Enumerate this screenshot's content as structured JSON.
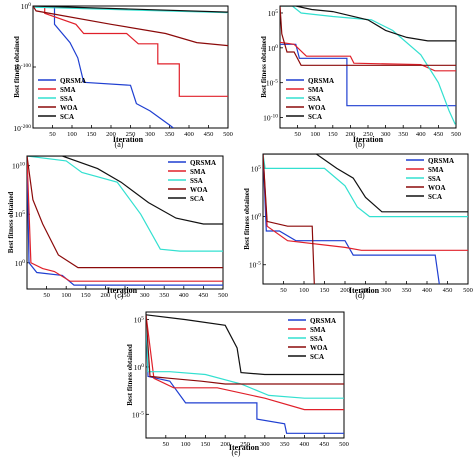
{
  "figure": {
    "legend_entries": [
      "QRSMA",
      "SMA",
      "SSA",
      "WOA",
      "SCA"
    ],
    "series_colors": {
      "QRSMA": "#1f3fd1",
      "SMA": "#e0202a",
      "SSA": "#33e0d0",
      "WOA": "#8b0a0a",
      "SCA": "#111111"
    }
  },
  "chart_data": [
    {
      "type": "line",
      "panel_label": "(a)",
      "xlabel": "Iteration",
      "ylabel": "Best fitness obtained",
      "xlim": [
        0,
        500
      ],
      "x_ticks": [
        "50",
        "100",
        "150",
        "200",
        "250",
        "300",
        "350",
        "400",
        "450",
        "500"
      ],
      "y_scale": "log",
      "y_tick_labels": [
        "10^0",
        "10^-100",
        "10^-200"
      ],
      "y_tick_exps": [
        0,
        -100,
        -200
      ],
      "ylim_exp": [
        -200,
        0
      ],
      "legend_placement": "bottom-left",
      "series": [
        {
          "name": "QRSMA",
          "points": [
            [
              0,
              0
            ],
            [
              55,
              0
            ],
            [
              55,
              -30
            ],
            [
              95,
              -60
            ],
            [
              115,
              -85
            ],
            [
              130,
              -125
            ],
            [
              250,
              -130
            ],
            [
              265,
              -160
            ],
            [
              300,
              -172
            ],
            [
              350,
              -195
            ],
            [
              360,
              -200
            ]
          ]
        },
        {
          "name": "SMA",
          "points": [
            [
              0,
              0
            ],
            [
              30,
              0
            ],
            [
              30,
              -12
            ],
            [
              110,
              -30
            ],
            [
              130,
              -45
            ],
            [
              240,
              -45
            ],
            [
              270,
              -62
            ],
            [
              320,
              -62
            ],
            [
              320,
              -95
            ],
            [
              375,
              -95
            ],
            [
              375,
              -148
            ],
            [
              500,
              -148
            ]
          ]
        },
        {
          "name": "SSA",
          "points": [
            [
              0,
              -2
            ],
            [
              500,
              -11
            ]
          ]
        },
        {
          "name": "WOA",
          "points": [
            [
              0,
              0
            ],
            [
              8,
              -8
            ],
            [
              200,
              -30
            ],
            [
              340,
              -45
            ],
            [
              420,
              -60
            ],
            [
              500,
              -65
            ]
          ]
        },
        {
          "name": "SCA",
          "points": [
            [
              0,
              0
            ],
            [
              500,
              -10
            ]
          ]
        }
      ]
    },
    {
      "type": "line",
      "panel_label": "(b)",
      "xlabel": "Iteration",
      "ylabel": "Best fitness obtained",
      "xlim": [
        0,
        500
      ],
      "x_ticks": [
        "50",
        "100",
        "150",
        "200",
        "250",
        "300",
        "350",
        "400",
        "450",
        "500"
      ],
      "y_scale": "log",
      "y_tick_labels": [
        "10^5",
        "10^0",
        "10^-5",
        "10^-10"
      ],
      "y_tick_exps": [
        5,
        0,
        -5,
        -10
      ],
      "ylim_exp": [
        -11.5,
        6
      ],
      "legend_placement": "center-left",
      "series": [
        {
          "name": "QRSMA",
          "points": [
            [
              0,
              0.5
            ],
            [
              45,
              0.5
            ],
            [
              55,
              -1.5
            ],
            [
              190,
              -1.5
            ],
            [
              190,
              -8.3
            ],
            [
              500,
              -8.3
            ]
          ]
        },
        {
          "name": "SMA",
          "points": [
            [
              0,
              0.8
            ],
            [
              40,
              0.5
            ],
            [
              75,
              -1.2
            ],
            [
              200,
              -1.2
            ],
            [
              210,
              -2.2
            ],
            [
              400,
              -2.4
            ],
            [
              440,
              -3.3
            ],
            [
              500,
              -3.3
            ]
          ]
        },
        {
          "name": "SSA",
          "points": [
            [
              0,
              6
            ],
            [
              35,
              6
            ],
            [
              60,
              5
            ],
            [
              150,
              4.5
            ],
            [
              260,
              4
            ],
            [
              320,
              2.5
            ],
            [
              400,
              -1
            ],
            [
              450,
              -5
            ],
            [
              480,
              -9
            ],
            [
              498,
              -11
            ]
          ]
        },
        {
          "name": "WOA",
          "points": [
            [
              0,
              6
            ],
            [
              5,
              2
            ],
            [
              20,
              -0.6
            ],
            [
              40,
              -0.6
            ],
            [
              60,
              -2.5
            ],
            [
              500,
              -2.5
            ]
          ]
        },
        {
          "name": "SCA",
          "points": [
            [
              0,
              6
            ],
            [
              45,
              6
            ],
            [
              90,
              5.5
            ],
            [
              150,
              5.2
            ],
            [
              250,
              4
            ],
            [
              300,
              2.5
            ],
            [
              360,
              1.5
            ],
            [
              420,
              1
            ],
            [
              500,
              1
            ]
          ]
        }
      ]
    },
    {
      "type": "line",
      "panel_label": "(c)",
      "xlabel": "Iteration",
      "ylabel": "Best fitness obtained",
      "xlim": [
        0,
        500
      ],
      "x_ticks": [
        "50",
        "100",
        "150",
        "200",
        "250",
        "300",
        "350",
        "400",
        "450",
        "500"
      ],
      "y_scale": "log",
      "y_tick_labels": [
        "10^10",
        "10^5",
        "10^0"
      ],
      "y_tick_exps": [
        10,
        5,
        0
      ],
      "ylim_exp": [
        -2.7,
        11
      ],
      "legend_placement": "top-right",
      "series": [
        {
          "name": "QRSMA",
          "points": [
            [
              0,
              11
            ],
            [
              5,
              0
            ],
            [
              25,
              -1
            ],
            [
              90,
              -1.3
            ],
            [
              120,
              -2.3
            ],
            [
              500,
              -2.3
            ]
          ]
        },
        {
          "name": "SMA",
          "points": [
            [
              0,
              11
            ],
            [
              10,
              0
            ],
            [
              40,
              -0.6
            ],
            [
              70,
              -0.9
            ],
            [
              110,
              -1.9
            ],
            [
              500,
              -1.9
            ]
          ]
        },
        {
          "name": "SSA",
          "points": [
            [
              0,
              11
            ],
            [
              100,
              10.5
            ],
            [
              140,
              9.3
            ],
            [
              230,
              8.3
            ],
            [
              290,
              5
            ],
            [
              340,
              1.4
            ],
            [
              390,
              1.2
            ],
            [
              500,
              1.2
            ]
          ]
        },
        {
          "name": "WOA",
          "points": [
            [
              0,
              11
            ],
            [
              15,
              6.5
            ],
            [
              40,
              4
            ],
            [
              80,
              0.8
            ],
            [
              130,
              -0.5
            ],
            [
              500,
              -0.5
            ]
          ]
        },
        {
          "name": "SCA",
          "points": [
            [
              0,
              11
            ],
            [
              90,
              11
            ],
            [
              180,
              9.7
            ],
            [
              240,
              8.3
            ],
            [
              310,
              6.2
            ],
            [
              380,
              4.6
            ],
            [
              450,
              4
            ],
            [
              500,
              4
            ]
          ]
        }
      ]
    },
    {
      "type": "line",
      "panel_label": "(d)",
      "xlabel": "Iteration",
      "ylabel": "Best fitness obtained",
      "xlim": [
        0,
        500
      ],
      "x_ticks": [
        "50",
        "100",
        "150",
        "200",
        "250",
        "300",
        "350",
        "400",
        "450",
        "500"
      ],
      "y_scale": "log",
      "y_tick_labels": [
        "10^5",
        "10^0",
        "10^-5"
      ],
      "y_tick_exps": [
        5,
        0,
        -5
      ],
      "ylim_exp": [
        -7,
        6.5
      ],
      "legend_placement": "top-right",
      "series": [
        {
          "name": "QRSMA",
          "points": [
            [
              0,
              6.5
            ],
            [
              8,
              -1.5
            ],
            [
              40,
              -1.5
            ],
            [
              80,
              -2.5
            ],
            [
              200,
              -2.5
            ],
            [
              220,
              -4
            ],
            [
              420,
              -4
            ],
            [
              430,
              -7
            ]
          ]
        },
        {
          "name": "SMA",
          "points": [
            [
              0,
              6.5
            ],
            [
              10,
              -1
            ],
            [
              60,
              -2.5
            ],
            [
              200,
              -3.2
            ],
            [
              240,
              -3.5
            ],
            [
              500,
              -3.5
            ]
          ]
        },
        {
          "name": "SSA",
          "points": [
            [
              0,
              6.5
            ],
            [
              5,
              5
            ],
            [
              150,
              5
            ],
            [
              200,
              3.2
            ],
            [
              230,
              1
            ],
            [
              260,
              0
            ],
            [
              500,
              0
            ]
          ]
        },
        {
          "name": "WOA",
          "points": [
            [
              0,
              6.5
            ],
            [
              10,
              -0.5
            ],
            [
              60,
              -1
            ],
            [
              120,
              -1
            ],
            [
              125,
              -7
            ]
          ]
        },
        {
          "name": "SCA",
          "points": [
            [
              0,
              6.5
            ],
            [
              130,
              6.5
            ],
            [
              180,
              5
            ],
            [
              220,
              4
            ],
            [
              250,
              2
            ],
            [
              290,
              0.5
            ],
            [
              500,
              0.5
            ]
          ]
        }
      ]
    },
    {
      "type": "line",
      "panel_label": "(e)",
      "xlabel": "Iteration",
      "ylabel": "Best fitness obtained",
      "xlim": [
        0,
        500
      ],
      "x_ticks": [
        "50",
        "100",
        "150",
        "200",
        "250",
        "300",
        "350",
        "400",
        "450",
        "500"
      ],
      "y_scale": "log",
      "y_tick_labels": [
        "10^5",
        "10^0",
        "10^-5"
      ],
      "y_tick_exps": [
        5,
        0,
        -5
      ],
      "ylim_exp": [
        -7.5,
        5.8
      ],
      "legend_placement": "top-right",
      "series": [
        {
          "name": "QRSMA",
          "points": [
            [
              0,
              5.5
            ],
            [
              5,
              -1
            ],
            [
              60,
              -1.5
            ],
            [
              100,
              -3.8
            ],
            [
              280,
              -3.8
            ],
            [
              280,
              -5.5
            ],
            [
              350,
              -6
            ],
            [
              355,
              -7
            ],
            [
              500,
              -7
            ]
          ]
        },
        {
          "name": "SMA",
          "points": [
            [
              0,
              5.5
            ],
            [
              20,
              -1.2
            ],
            [
              70,
              -2.2
            ],
            [
              180,
              -2.2
            ],
            [
              300,
              -3.3
            ],
            [
              400,
              -4.5
            ],
            [
              500,
              -4.5
            ]
          ]
        },
        {
          "name": "SSA",
          "points": [
            [
              0,
              5.5
            ],
            [
              5,
              -0.5
            ],
            [
              60,
              -0.5
            ],
            [
              150,
              -0.8
            ],
            [
              240,
              -1.8
            ],
            [
              310,
              -3
            ],
            [
              400,
              -3.3
            ],
            [
              500,
              -3.3
            ]
          ]
        },
        {
          "name": "WOA",
          "points": [
            [
              0,
              5.5
            ],
            [
              10,
              -1
            ],
            [
              60,
              -1.2
            ],
            [
              140,
              -1.5
            ],
            [
              200,
              -1.8
            ],
            [
              500,
              -1.8
            ]
          ]
        },
        {
          "name": "SCA",
          "points": [
            [
              0,
              5.5
            ],
            [
              100,
              5
            ],
            [
              200,
              4.4
            ],
            [
              230,
              2
            ],
            [
              240,
              -0.6
            ],
            [
              300,
              -0.8
            ],
            [
              500,
              -0.8
            ]
          ]
        }
      ]
    }
  ]
}
